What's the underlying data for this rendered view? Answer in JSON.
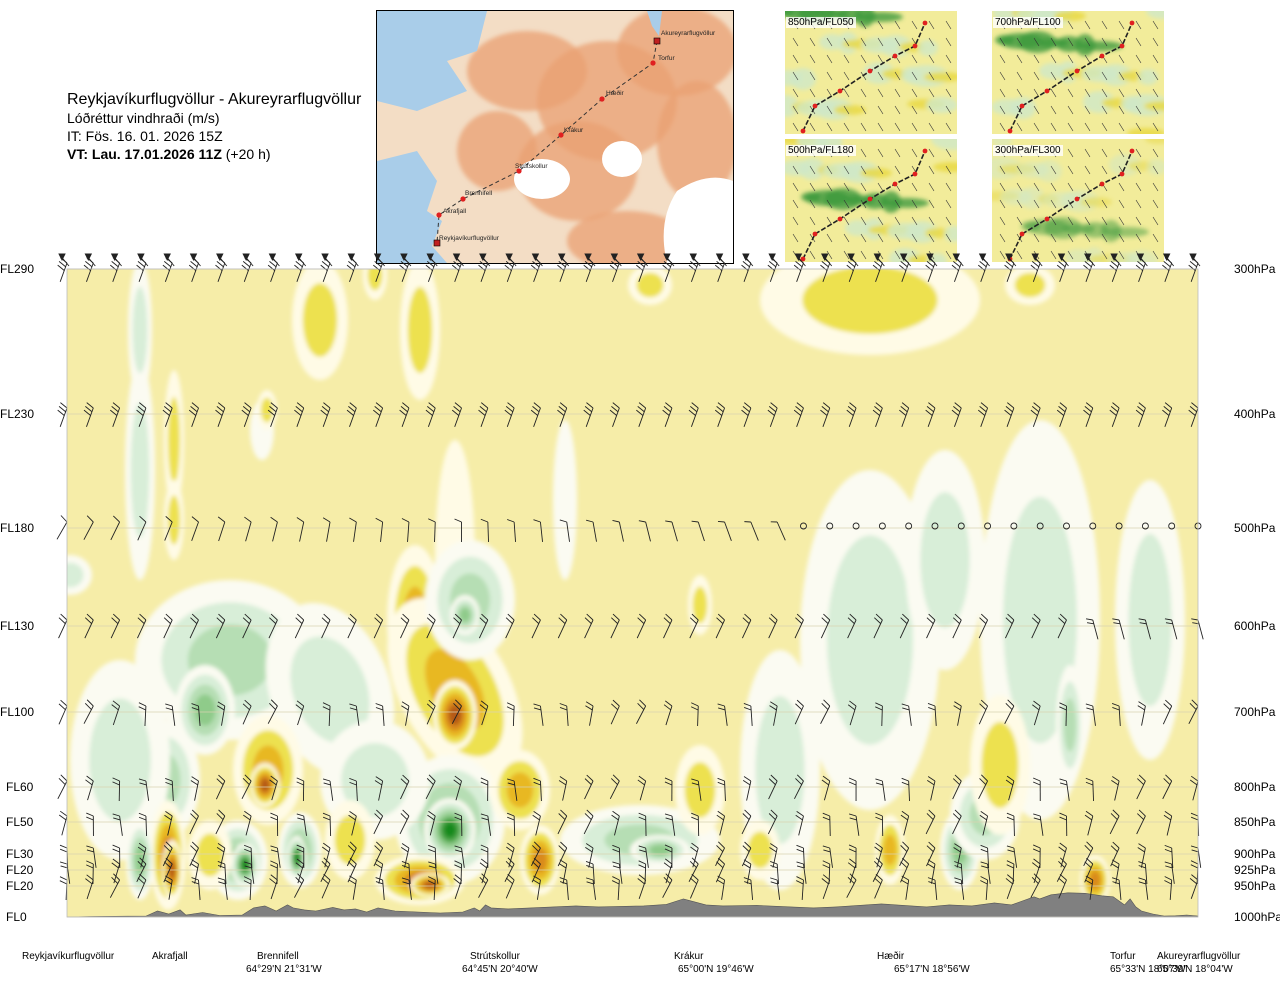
{
  "header": {
    "route": "Reykjavíkurflugvöllur - Akureyrarflugvöllur",
    "variable": "Lóðréttur vindhraði (m/s)",
    "issue_time": "IT: Fös. 16. 01. 2026 15Z",
    "valid_label": "VT: Lau. 17.01.2026 11Z",
    "valid_lead": "(+20 h)"
  },
  "inset_map": {
    "places": [
      "Akureyrarflugvöllur",
      "Torfur",
      "Hæðir",
      "Krákur",
      "Strútskollur",
      "Brennifell",
      "Akrafjall",
      "Reykjavíkurflugvöllur"
    ],
    "colors": {
      "sea": "#a9cde9",
      "land_low": "#f3ddc5",
      "land_high": "#e9a072",
      "glacier": "#ffffff",
      "route": "#333333",
      "point": "#e02020"
    }
  },
  "mini_maps": [
    {
      "label": "850hPa/FL050"
    },
    {
      "label": "700hPa/FL100"
    },
    {
      "label": "500hPa/FL180"
    },
    {
      "label": "300hPa/FL300"
    }
  ],
  "chart_data": {
    "type": "heatmap",
    "title": "Reykjavíkurflugvöllur - Akureyrarflugvöllur",
    "variable": "Lóðréttur vindhraði (m/s)",
    "y_left_ticks": [
      "FL290",
      "FL230",
      "FL180",
      "FL130",
      "FL100",
      "FL60",
      "FL50",
      "FL30",
      "FL20",
      "FL20",
      "FL0"
    ],
    "y_right_ticks": [
      "300hPa",
      "400hPa",
      "500hPa",
      "600hPa",
      "700hPa",
      "800hPa",
      "850hPa",
      "900hPa",
      "925hPa",
      "950hPa",
      "1000hPa"
    ],
    "pressure_levels_hpa": [
      300,
      400,
      500,
      600,
      700,
      800,
      850,
      900,
      925,
      950,
      1000
    ],
    "y_range_hpa": [
      300,
      1000
    ],
    "x_range": [
      0,
      1
    ],
    "x_locations": [
      {
        "name": "Reykjavíkurflugvöllur",
        "coord": "",
        "pos": 0.0
      },
      {
        "name": "Akrafjall",
        "coord": "",
        "pos": 0.09
      },
      {
        "name": "Brennifell",
        "coord": "64°29'N 21°31'W",
        "pos": 0.19
      },
      {
        "name": "Strútskollur",
        "coord": "64°45'N 20°40'W",
        "pos": 0.37
      },
      {
        "name": "Krákur",
        "coord": "65°00'N 19°46'W",
        "pos": 0.55
      },
      {
        "name": "Hæðir",
        "coord": "65°17'N 18°56'W",
        "pos": 0.73
      },
      {
        "name": "Torfur",
        "coord": "65°33'N 18°07'W",
        "pos": 0.94
      },
      {
        "name": "Akureyrarflugvöllur",
        "coord": "65°39'N 18°04'W",
        "pos": 1.0
      }
    ],
    "color_scale": {
      "background": "#f6eda8",
      "positive": [
        "#f6eda8",
        "#fffbe6",
        "#ede150",
        "#e8b820",
        "#d98a1a",
        "#b55a15"
      ],
      "negative": [
        "#f6eda8",
        "#fbfbf2",
        "#d8eed8",
        "#b6deb4",
        "#8fcb8a",
        "#4da64a",
        "#138a1a"
      ]
    },
    "terrain_color": "#808080",
    "wind_barb_levels_hpa": [
      300,
      400,
      500,
      600,
      700,
      800,
      850,
      900,
      925,
      950
    ],
    "calm_marker_level_hpa": 500,
    "grid": true
  }
}
